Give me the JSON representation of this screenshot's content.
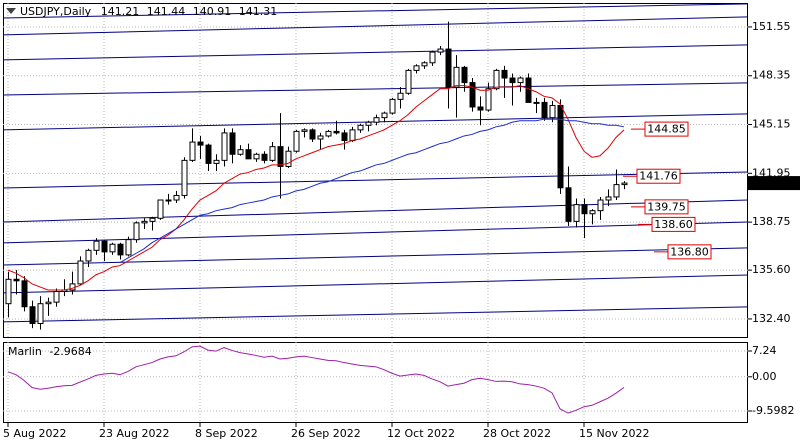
{
  "chart_data": {
    "type": "candlestick",
    "symbol": "USDJPY,Daily",
    "categories": [
      "5 Aug 2022",
      null,
      null,
      null,
      null,
      null,
      null,
      null,
      null,
      null,
      null,
      null,
      "23 Aug 2022",
      null,
      null,
      null,
      null,
      null,
      null,
      null,
      null,
      null,
      null,
      null,
      "8 Sep 2022",
      null,
      null,
      null,
      null,
      null,
      null,
      null,
      null,
      null,
      null,
      null,
      "26 Sep 2022",
      null,
      null,
      null,
      null,
      null,
      null,
      null,
      null,
      null,
      null,
      null,
      "12 Oct 2022",
      null,
      null,
      null,
      null,
      null,
      null,
      null,
      null,
      null,
      null,
      null,
      "28 Oct 2022",
      null,
      null,
      null,
      null,
      null,
      null,
      null,
      null,
      null,
      null,
      null,
      "15 Nov 2022",
      null,
      null,
      null,
      null,
      null
    ],
    "open": [
      133.4,
      135.0,
      134.9,
      133.2,
      132.1,
      133.4,
      133.5,
      134.2,
      134.3,
      134.7,
      136.2,
      136.9,
      137.5,
      136.8,
      137.3,
      136.6,
      137.6,
      138.7,
      138.8,
      139.0,
      140.2,
      140.2,
      140.5,
      142.8,
      144.0,
      143.8,
      142.6,
      142.8,
      144.6,
      143.2,
      143.5,
      142.9,
      143.2,
      142.8,
      143.7,
      142.4,
      143.4,
      144.7,
      144.8,
      144.2,
      144.4,
      144.7,
      144.6,
      144.1,
      144.8,
      145.1,
      145.3,
      145.6,
      145.9,
      146.8,
      147.2,
      148.7,
      149.0,
      149.2,
      149.9,
      150.1,
      147.6,
      148.9,
      147.9,
      146.3,
      146.1,
      147.5,
      148.7,
      148.2,
      147.9,
      148.2,
      146.6,
      146.6,
      145.6,
      146.4,
      141.0,
      138.8,
      139.9,
      139.3,
      139.5,
      140.2,
      140.4,
      141.21
    ],
    "high": [
      135.5,
      135.6,
      135.2,
      133.6,
      133.9,
      133.8,
      134.4,
      135.0,
      135.5,
      136.5,
      137.0,
      137.7,
      137.6,
      137.4,
      137.4,
      137.8,
      138.8,
      139.0,
      139.1,
      140.2,
      140.6,
      140.8,
      143.0,
      144.9,
      144.4,
      143.9,
      143.2,
      144.9,
      144.9,
      143.8,
      143.9,
      143.3,
      143.4,
      144.0,
      145.9,
      143.7,
      144.8,
      144.9,
      144.9,
      144.6,
      144.8,
      145.4,
      144.8,
      145.0,
      145.2,
      145.4,
      145.8,
      146.0,
      146.9,
      147.6,
      148.8,
      149.1,
      149.3,
      150.0,
      150.3,
      151.9,
      149.7,
      149.0,
      148.2,
      147.0,
      147.9,
      148.8,
      149.0,
      148.5,
      148.3,
      148.5,
      146.9,
      146.9,
      146.7,
      146.8,
      142.4,
      140.3,
      140.3,
      139.6,
      140.4,
      140.9,
      142.2,
      141.44
    ],
    "low": [
      132.5,
      134.0,
      132.9,
      131.8,
      131.7,
      132.6,
      133.2,
      133.9,
      134.0,
      134.6,
      135.8,
      136.6,
      136.2,
      136.6,
      136.3,
      136.5,
      137.4,
      138.3,
      138.2,
      138.9,
      139.9,
      140.0,
      140.3,
      142.7,
      142.9,
      142.1,
      142.1,
      142.4,
      142.6,
      143.1,
      142.9,
      142.7,
      142.6,
      142.7,
      140.3,
      142.3,
      143.3,
      144.3,
      144.0,
      143.5,
      144.3,
      144.5,
      143.5,
      144.0,
      144.6,
      144.7,
      145.1,
      145.3,
      145.8,
      146.2,
      147.1,
      148.5,
      148.8,
      149.0,
      149.7,
      146.2,
      145.6,
      147.3,
      146.0,
      145.1,
      146.0,
      147.4,
      146.9,
      146.4,
      147.3,
      146.6,
      145.9,
      145.4,
      145.3,
      140.6,
      138.5,
      138.4,
      137.7,
      138.6,
      138.9,
      139.8,
      140.2,
      140.91
    ],
    "close": [
      135.0,
      134.9,
      133.2,
      132.1,
      133.4,
      133.5,
      134.2,
      134.3,
      134.7,
      136.2,
      136.9,
      137.5,
      136.8,
      137.3,
      136.6,
      137.6,
      138.7,
      138.8,
      139.0,
      140.2,
      140.2,
      140.5,
      142.8,
      144.0,
      143.8,
      142.6,
      142.8,
      144.6,
      143.2,
      143.5,
      142.9,
      143.2,
      142.8,
      143.7,
      142.4,
      143.4,
      144.7,
      144.8,
      144.2,
      144.4,
      144.7,
      144.6,
      144.1,
      144.8,
      145.1,
      145.3,
      145.6,
      145.9,
      146.8,
      147.2,
      148.7,
      149.0,
      149.2,
      149.9,
      150.1,
      147.6,
      148.9,
      147.9,
      146.3,
      146.1,
      147.5,
      148.7,
      148.2,
      147.9,
      148.2,
      146.6,
      146.6,
      145.6,
      146.4,
      141.0,
      138.8,
      139.9,
      139.3,
      139.5,
      140.2,
      140.4,
      141.21,
      141.31
    ],
    "up_color": "#ffffff",
    "down_color": "#000000",
    "ylim": [
      131.15,
      153.12
    ],
    "yticks": [
      151.55,
      148.35,
      145.15,
      141.95,
      138.75,
      {
        "value": 135.6,
        "label": "135.60"
      },
      {
        "value": 132.4,
        "label": "132.40"
      }
    ],
    "grid": true,
    "overlays": [
      {
        "color": "#e00000",
        "values": [
          135.6,
          135.4,
          135.1,
          134.7,
          134.5,
          134.3,
          134.3,
          134.3,
          134.4,
          134.6,
          134.9,
          135.3,
          135.5,
          135.8,
          135.9,
          136.2,
          136.5,
          136.8,
          137.1,
          137.6,
          137.9,
          138.3,
          138.9,
          139.6,
          140.2,
          140.5,
          140.8,
          141.3,
          141.6,
          141.9,
          142.0,
          142.2,
          142.3,
          142.5,
          142.5,
          142.6,
          142.9,
          143.1,
          143.3,
          143.5,
          143.7,
          143.8,
          143.9,
          144.1,
          144.2,
          144.4,
          144.6,
          144.8,
          145.1,
          145.4,
          145.8,
          146.3,
          146.7,
          147.1,
          147.5,
          147.5,
          147.7,
          147.7,
          147.6,
          147.4,
          147.4,
          147.6,
          147.6,
          147.6,
          147.7,
          147.5,
          147.3,
          147.0,
          146.9,
          146.5,
          145.5,
          144.3,
          143.4,
          143.0,
          143.1,
          143.6,
          144.3,
          144.8
        ]
      },
      {
        "color": "#1a2ccf",
        "values": [
          null,
          null,
          null,
          null,
          null,
          null,
          null,
          null,
          null,
          null,
          null,
          null,
          null,
          null,
          136.1,
          136.4,
          136.7,
          137.0,
          137.4,
          137.7,
          138.0,
          138.3,
          138.6,
          138.9,
          139.2,
          139.3,
          139.5,
          139.6,
          139.7,
          139.9,
          140.0,
          140.1,
          140.2,
          140.4,
          140.5,
          140.6,
          140.8,
          140.9,
          141.1,
          141.3,
          141.4,
          141.6,
          141.8,
          142.0,
          142.1,
          142.3,
          142.5,
          142.6,
          142.8,
          143.0,
          143.2,
          143.3,
          143.5,
          143.7,
          143.9,
          144.0,
          144.2,
          144.4,
          144.5,
          144.7,
          144.8,
          145.0,
          145.1,
          145.3,
          145.4,
          145.4,
          145.4,
          145.5,
          145.5,
          145.5,
          145.4,
          145.4,
          145.3,
          145.2,
          145.2,
          145.1,
          145.1,
          145.0
        ]
      }
    ],
    "trend_color": "#000080",
    "trend_lines": [
      {
        "start": 152.14,
        "end": 153.06
      },
      {
        "start": 151.03,
        "end": 152.21
      },
      {
        "start": 149.39,
        "end": 150.37
      },
      {
        "start": 147.09,
        "end": 147.88
      },
      {
        "start": 144.8,
        "end": 145.85
      },
      {
        "start": 140.99,
        "end": 142.04
      },
      {
        "start": 138.76,
        "end": 140.2
      },
      {
        "start": 137.39,
        "end": 138.76
      },
      {
        "start": 135.94,
        "end": 137.06
      },
      {
        "start": 134.11,
        "end": 135.28
      },
      {
        "start": 132.21,
        "end": 133.19
      }
    ],
    "annotation_color": "#e00000",
    "annotations": [
      144.85,
      141.76,
      139.75,
      {
        "value": 138.6,
        "label": "138.60"
      },
      {
        "value": 136.8,
        "label": "136.80"
      }
    ],
    "indicator": {
      "name": "Marlin",
      "color": "#a01fa8",
      "values": [
        1.4,
        0.6,
        -1.0,
        -3.0,
        -3.5,
        -3.2,
        -2.8,
        -2.5,
        -2.4,
        -1.5,
        -0.6,
        0.4,
        0.8,
        1.0,
        0.6,
        1.5,
        2.8,
        3.4,
        4.0,
        5.0,
        5.6,
        5.9,
        7.0,
        8.4,
        8.6,
        7.5,
        7.2,
        8.2,
        7.4,
        6.8,
        6.4,
        6.0,
        5.5,
        5.8,
        5.0,
        5.2,
        5.6,
        5.8,
        5.4,
        5.0,
        4.6,
        4.5,
        4.0,
        3.6,
        3.2,
        3.0,
        2.8,
        2.0,
        1.0,
        0.2,
        0.5,
        0.8,
        0.4,
        -0.6,
        -1.4,
        -2.6,
        -2.2,
        -1.8,
        -0.8,
        -0.4,
        -0.8,
        -1.3,
        -1.2,
        -1.4,
        -2.0,
        -2.2,
        -2.6,
        -3.2,
        -4.5,
        -9.0,
        -10.2,
        -9.4,
        -8.4,
        -8.0,
        -7.0,
        -6.0,
        -4.6,
        -2.9684
      ],
      "ylim": [
        -12.97,
        9.77
      ],
      "yticks": [
        7.24,
        {
          "value": 0,
          "label": "0.00"
        },
        -9.5982
      ]
    }
  }
}
